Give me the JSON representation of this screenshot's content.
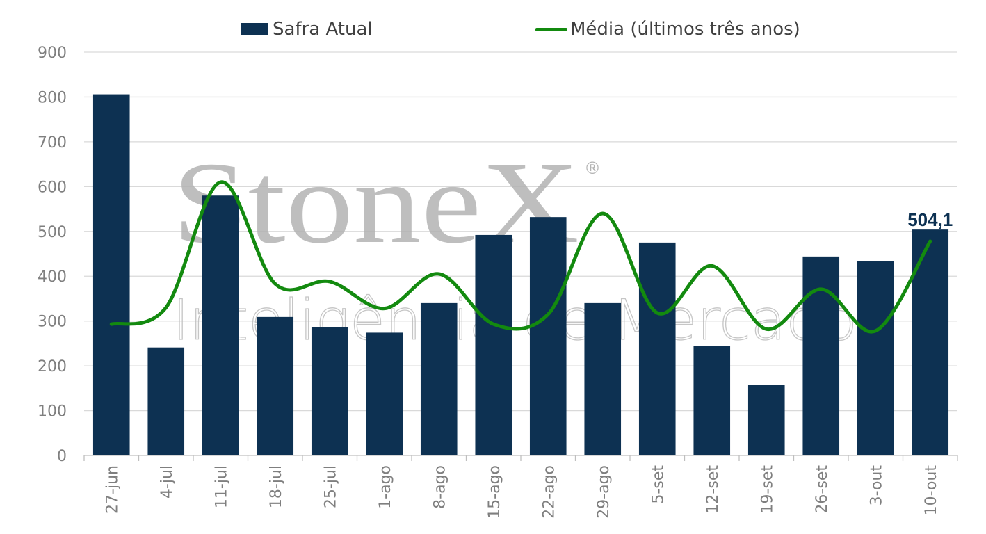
{
  "chart_data": {
    "type": "bar",
    "categories": [
      "27-jun",
      "4-jul",
      "11-jul",
      "18-jul",
      "25-jul",
      "1-ago",
      "8-ago",
      "15-ago",
      "22-ago",
      "29-ago",
      "5-set",
      "12-set",
      "19-set",
      "26-set",
      "3-out",
      "10-out"
    ],
    "series": [
      {
        "name": "Safra Atual",
        "type": "bar",
        "color": "#0d3152",
        "values": [
          806,
          241,
          580,
          309,
          286,
          274,
          340,
          492,
          532,
          340,
          475,
          245,
          158,
          444,
          433,
          504.1
        ]
      },
      {
        "name": "Média (últimos três anos)",
        "type": "line",
        "smooth": true,
        "color": "#138a0f",
        "values": [
          293,
          330,
          610,
          383,
          388,
          328,
          405,
          293,
          315,
          540,
          318,
          423,
          282,
          371,
          278,
          478
        ]
      }
    ],
    "ylim": [
      0,
      900
    ],
    "yticks": [
      0,
      100,
      200,
      300,
      400,
      500,
      600,
      700,
      800,
      900
    ],
    "grid": true,
    "legend": "top-center",
    "data_labels": [
      {
        "category": "10-out",
        "text": "504,1",
        "color": "#0d3152"
      }
    ],
    "watermark": {
      "brand": "StoneX",
      "registered": "®",
      "tagline": "Inteligência de Mercado"
    }
  },
  "legend": {
    "bar_label": "Safra Atual",
    "line_label": "Média (últimos três anos)"
  }
}
